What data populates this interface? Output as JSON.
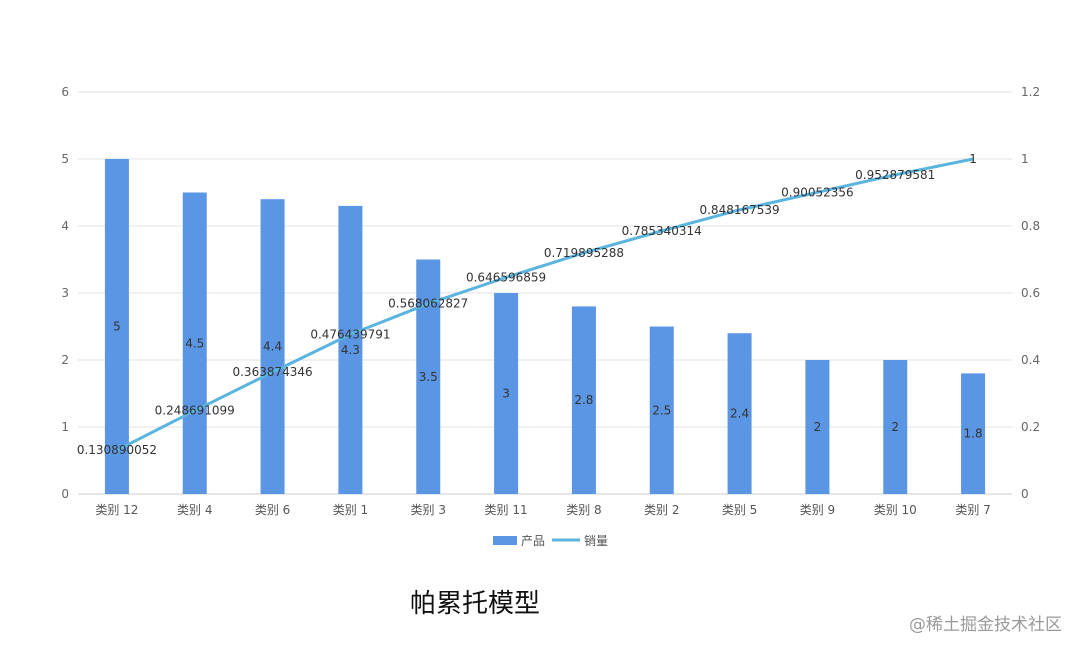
{
  "chart_data": {
    "type": "bar",
    "categories": [
      "类别 12",
      "类别 4",
      "类别 6",
      "类别 1",
      "类别 3",
      "类别 11",
      "类别 8",
      "类别 2",
      "类别 5",
      "类别 9",
      "类别 10",
      "类别 7"
    ],
    "series": [
      {
        "name": "产品",
        "type": "bar",
        "axis": "left",
        "color": "#5b96e5",
        "values": [
          5,
          4.5,
          4.4,
          4.3,
          3.5,
          3,
          2.8,
          2.5,
          2.4,
          2,
          2,
          1.8
        ],
        "labels": [
          "5",
          "4.5",
          "4.4",
          "4.3",
          "3.5",
          "3",
          "2.8",
          "2.5",
          "2.4",
          "2",
          "2",
          "1.8"
        ]
      },
      {
        "name": "销量",
        "type": "line",
        "axis": "right",
        "color": "#5ab4e0",
        "values": [
          0.130890052,
          0.248691099,
          0.363874346,
          0.476439791,
          0.568062827,
          0.646596859,
          0.719895288,
          0.785340314,
          0.848167539,
          0.90052356,
          0.952879581,
          1
        ],
        "labels": [
          "0.130890052",
          "0.248691099",
          "0.363874346",
          "0.476439791",
          "0.568062827",
          "0.646596859",
          "0.719895288",
          "0.785340314",
          "0.848167539",
          "0.90052356",
          "0.952879581",
          "1"
        ]
      }
    ],
    "y_left": {
      "ylim": [
        0,
        6
      ],
      "ticks": [
        "0",
        "1",
        "2",
        "3",
        "4",
        "5",
        "6"
      ]
    },
    "y_right": {
      "ylim": [
        0,
        1.2
      ],
      "ticks": [
        "0",
        "0.2",
        "0.4",
        "0.6",
        "0.8",
        "1",
        "1.2"
      ]
    },
    "grid": true,
    "legend_position": "bottom",
    "title": "",
    "xlabel": "",
    "ylabel": ""
  },
  "caption": "帕累托模型",
  "watermark": "@稀土掘金技术社区"
}
